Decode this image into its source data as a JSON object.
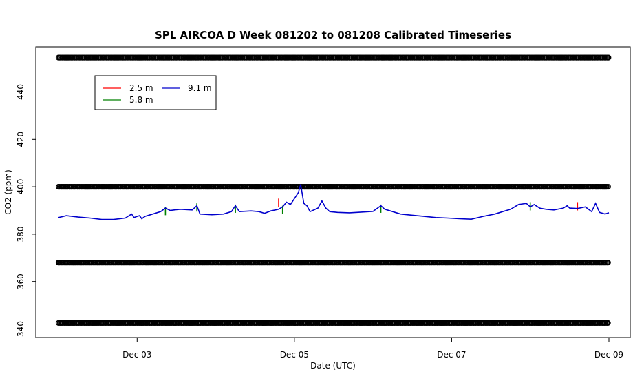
{
  "chart_data": {
    "type": "line",
    "title": "SPL AIRCOA D  Week 081202 to 081208  Calibrated Timeseries",
    "xlabel": "Date (UTC)",
    "ylabel": "CO2 (ppm)",
    "xlim": [
      2.0,
      9.0
    ],
    "ylim": [
      339,
      456
    ],
    "x_ticks": [
      {
        "value": 3,
        "label": "Dec 03"
      },
      {
        "value": 5,
        "label": "Dec 05"
      },
      {
        "value": 7,
        "label": "Dec 07"
      },
      {
        "value": 9,
        "label": "Dec 09"
      }
    ],
    "y_ticks": [
      340,
      360,
      380,
      400,
      420,
      440
    ],
    "legend": {
      "position": "top-left",
      "entries": [
        {
          "name": "2.5 m",
          "color": "#ff0000"
        },
        {
          "name": "5.8 m",
          "color": "#008000"
        },
        {
          "name": "9.1 m",
          "color": "#0000cc"
        }
      ]
    },
    "series": [
      {
        "name": "9.1 m",
        "color": "#0000cc",
        "x": [
          2.0,
          2.1,
          2.25,
          2.4,
          2.55,
          2.7,
          2.85,
          2.93,
          2.96,
          3.0,
          3.03,
          3.06,
          3.1,
          3.2,
          3.3,
          3.36,
          3.42,
          3.55,
          3.7,
          3.76,
          3.8,
          3.95,
          4.1,
          4.2,
          4.25,
          4.3,
          4.45,
          4.55,
          4.62,
          4.7,
          4.8,
          4.85,
          4.9,
          4.95,
          5.0,
          5.05,
          5.08,
          5.12,
          5.16,
          5.2,
          5.3,
          5.35,
          5.4,
          5.45,
          5.55,
          5.7,
          5.85,
          6.0,
          6.1,
          6.15,
          6.22,
          6.35,
          6.5,
          6.65,
          6.8,
          6.95,
          7.1,
          7.25,
          7.4,
          7.55,
          7.65,
          7.75,
          7.85,
          7.95,
          8.0,
          8.05,
          8.12,
          8.2,
          8.3,
          8.42,
          8.47,
          8.5,
          8.6,
          8.7,
          8.78,
          8.83,
          8.88,
          8.95,
          9.0
        ],
        "values": [
          387,
          387.8,
          387.2,
          386.8,
          386.2,
          386.2,
          386.8,
          388.5,
          387,
          387.5,
          387.8,
          386.5,
          387.5,
          388.5,
          389.5,
          391,
          390,
          390.5,
          390.2,
          392,
          388.5,
          388.2,
          388.5,
          389.5,
          392,
          389.5,
          389.8,
          389.5,
          388.8,
          389.8,
          390.5,
          391.5,
          393.5,
          392.5,
          395,
          397.5,
          401,
          393,
          392,
          389.5,
          391,
          394,
          391,
          389.5,
          389.2,
          389,
          389.3,
          389.6,
          392,
          390.5,
          389.8,
          388.5,
          388,
          387.5,
          387,
          386.8,
          386.5,
          386.3,
          387.5,
          388.5,
          389.5,
          390.5,
          392.5,
          393,
          391.5,
          392.5,
          391,
          390.5,
          390.2,
          391,
          392,
          391,
          390.8,
          391.5,
          389.5,
          393,
          389.2,
          388.5,
          389
        ]
      },
      {
        "name": "5.8 m",
        "color": "#008000",
        "x": [
          3.36,
          3.76,
          4.25,
          4.85,
          6.1,
          8.0
        ],
        "values": [
          391.5,
          393,
          392.5,
          392,
          392.5,
          393.5
        ]
      },
      {
        "name": "2.5 m",
        "color": "#ff0000",
        "x": [
          4.8,
          8.6
        ],
        "values": [
          395,
          393.5
        ]
      }
    ],
    "calibration_points": {
      "marker": "open-circle",
      "levels": [
        342.5,
        368,
        400,
        454.5
      ]
    }
  }
}
